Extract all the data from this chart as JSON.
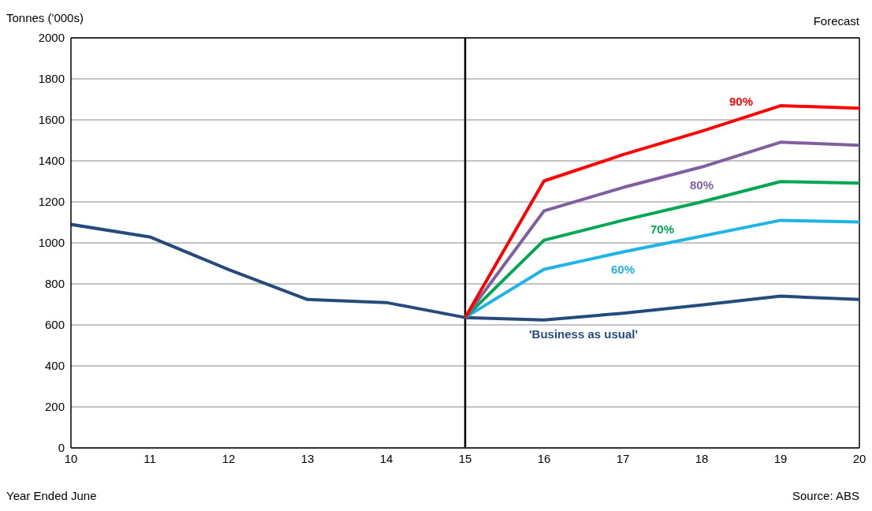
{
  "chart_data": {
    "type": "line",
    "ylabel": "Tonnes ('000s)",
    "xlabel": "Year Ended June",
    "annotations": [
      "Forecast",
      "Source: ABS"
    ],
    "xlim": [
      10,
      20
    ],
    "xticks": [
      10,
      11,
      12,
      13,
      14,
      15,
      16,
      17,
      18,
      19,
      20
    ],
    "ylim": [
      0,
      2000
    ],
    "yticks": [
      0,
      200,
      400,
      600,
      800,
      1000,
      1200,
      1400,
      1600,
      1800,
      2000
    ],
    "grid": "y",
    "legend": false,
    "marker": "none",
    "line_style": "solid",
    "ref_lines": [
      {
        "axis": "x",
        "value": 15,
        "color": "#000000"
      }
    ],
    "series": [
      {
        "name": "'Business as usual'",
        "color": "#254a7c",
        "x": [
          10,
          11,
          12,
          13,
          14,
          15,
          16,
          17,
          18,
          19,
          20
        ],
        "values": [
          1090,
          1029,
          870,
          724,
          709,
          636,
          624,
          657,
          697,
          740,
          724
        ]
      },
      {
        "name": "60%",
        "color": "#1eb4e6",
        "x": [
          15,
          16,
          17,
          18,
          19,
          20
        ],
        "values": [
          636,
          871,
          956,
          1033,
          1110,
          1102
        ]
      },
      {
        "name": "70%",
        "color": "#00a651",
        "x": [
          15,
          16,
          17,
          18,
          19,
          20
        ],
        "values": [
          636,
          1013,
          1110,
          1200,
          1299,
          1291
        ]
      },
      {
        "name": "80%",
        "color": "#7f5fa0",
        "x": [
          15,
          16,
          17,
          18,
          19,
          20
        ],
        "values": [
          636,
          1156,
          1270,
          1370,
          1491,
          1476
        ]
      },
      {
        "name": "90%",
        "color": "#ff0000",
        "x": [
          15,
          16,
          17,
          18,
          19,
          20
        ],
        "values": [
          636,
          1302,
          1430,
          1545,
          1669,
          1657
        ]
      }
    ]
  }
}
